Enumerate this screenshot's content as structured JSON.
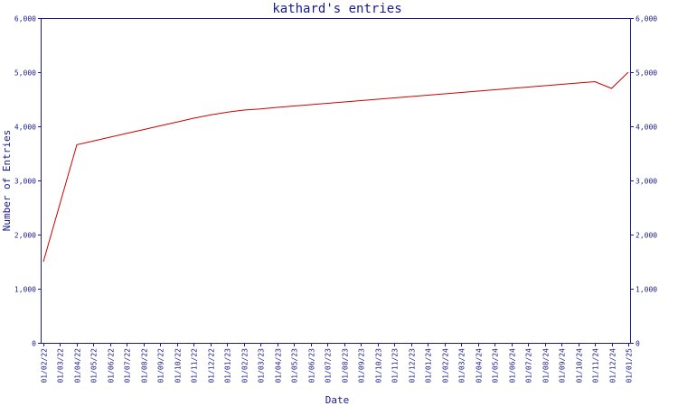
{
  "chart_data": {
    "type": "line",
    "title": "kathard's entries",
    "xlabel": "Date",
    "ylabel": "Number of Entries",
    "ylim": [
      0,
      6000
    ],
    "yticks": [
      0,
      1000,
      2000,
      3000,
      4000,
      5000,
      6000
    ],
    "ytick_labels": [
      "0",
      "1,000",
      "2,000",
      "3,000",
      "4,000",
      "5,000",
      "6,000"
    ],
    "xtick_labels": [
      "01/02/22",
      "01/03/22",
      "01/04/22",
      "01/05/22",
      "01/06/22",
      "01/07/22",
      "01/08/22",
      "01/09/22",
      "01/10/22",
      "01/11/22",
      "01/12/22",
      "01/01/23",
      "01/02/23",
      "01/03/23",
      "01/04/23",
      "01/05/23",
      "01/06/23",
      "01/07/23",
      "01/08/23",
      "01/09/23",
      "01/10/23",
      "01/11/23",
      "01/12/23",
      "01/01/24",
      "01/02/24",
      "01/03/24",
      "01/04/24",
      "01/05/24",
      "01/06/24",
      "01/07/24",
      "01/08/24",
      "01/09/24",
      "01/10/24",
      "01/11/24",
      "01/12/24",
      "01/01/25"
    ],
    "grid": false,
    "series": [
      {
        "color": "#cc0000",
        "x": [
          "01/02/22",
          "01/04/22",
          "01/05/22",
          "01/06/22",
          "01/07/22",
          "01/08/22",
          "01/09/22",
          "01/10/22",
          "01/11/22",
          "01/12/22",
          "01/01/23",
          "01/02/23",
          "01/03/23",
          "01/04/23",
          "01/05/23",
          "01/06/23",
          "01/07/23",
          "01/08/23",
          "01/09/23",
          "01/10/23",
          "01/11/23",
          "01/12/23",
          "01/01/24",
          "01/02/24",
          "01/03/24",
          "01/04/24",
          "01/05/24",
          "01/06/24",
          "01/07/24",
          "01/08/24",
          "01/09/24",
          "01/10/24",
          "01/11/24",
          "01/12/24",
          "01/01/25"
        ],
        "y": [
          1500,
          3660,
          3730,
          3800,
          3870,
          3940,
          4010,
          4080,
          4150,
          4210,
          4260,
          4300,
          4320,
          4350,
          4375,
          4400,
          4425,
          4450,
          4475,
          4500,
          4525,
          4550,
          4575,
          4600,
          4625,
          4650,
          4675,
          4700,
          4725,
          4750,
          4775,
          4800,
          4825,
          4700,
          5000
        ]
      }
    ]
  }
}
